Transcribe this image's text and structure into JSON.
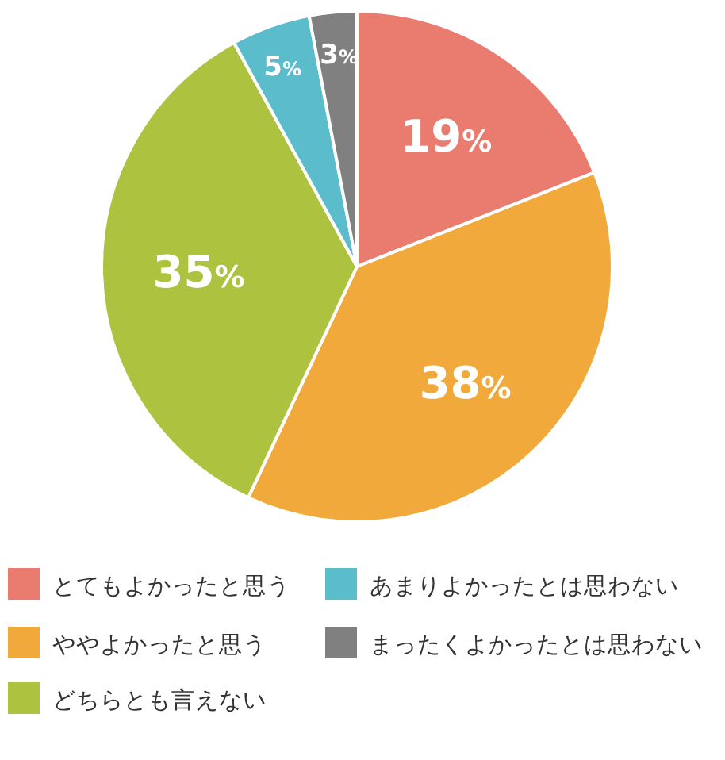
{
  "chart_data": {
    "type": "pie",
    "categories": [
      "とてもよかったと思う",
      "ややよかったと思う",
      "どちらとも言えない",
      "あまりよかったとは思わない",
      "まったくよかったとは思わない"
    ],
    "values": [
      19,
      38,
      35,
      5,
      3
    ],
    "colors": [
      "#e97b6f",
      "#f2a93b",
      "#adc33f",
      "#5bbccb",
      "#808080"
    ],
    "value_labels": [
      "19%",
      "38%",
      "35%",
      "5%",
      "3%"
    ],
    "legend": "bottom"
  }
}
